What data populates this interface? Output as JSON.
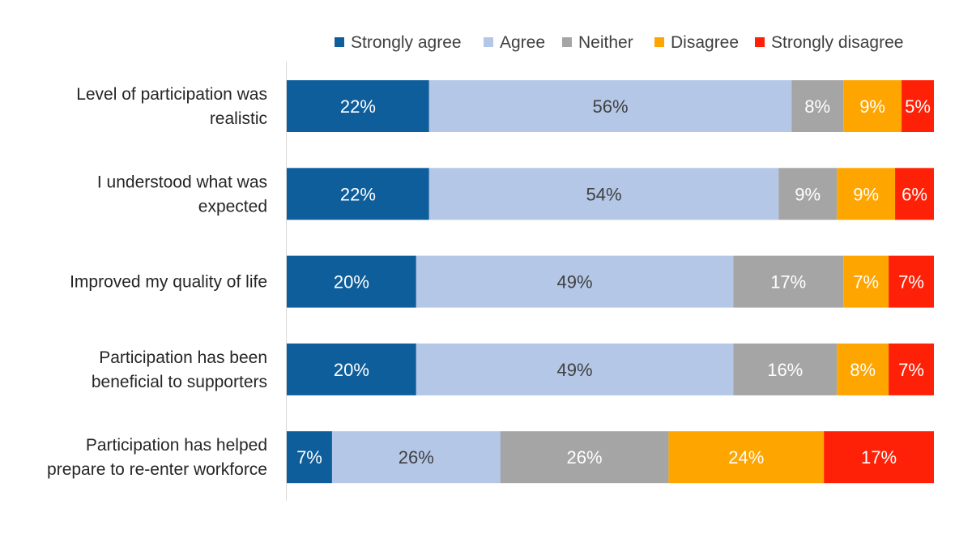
{
  "chart_data": {
    "type": "bar",
    "orientation": "horizontal",
    "stacked": true,
    "title": "",
    "xlabel": "",
    "ylabel": "",
    "xlim": [
      0,
      100
    ],
    "grid": false,
    "legend_position": "top",
    "categories": [
      [
        "Level of participation was",
        "realistic"
      ],
      [
        "I understood what was",
        "expected"
      ],
      [
        "Improved my quality of life"
      ],
      [
        "Participation has been",
        "beneficial to supporters"
      ],
      [
        "Participation has helped",
        "prepare to re-enter workforce"
      ]
    ],
    "series": [
      {
        "name": "Strongly agree",
        "color": "#0F5E9C",
        "label_color": "#FFFFFF",
        "values": [
          22,
          22,
          20,
          20,
          7
        ]
      },
      {
        "name": "Agree",
        "color": "#B4C7E7",
        "label_color": "#404040",
        "values": [
          56,
          54,
          49,
          49,
          26
        ]
      },
      {
        "name": "Neither",
        "color": "#A5A5A5",
        "label_color": "#FFFFFF",
        "values": [
          8,
          9,
          17,
          16,
          26
        ]
      },
      {
        "name": "Disagree",
        "color": "#FFA500",
        "label_color": "#FFFFFF",
        "values": [
          9,
          9,
          7,
          8,
          24
        ]
      },
      {
        "name": "Strongly disagree",
        "color": "#FF2107",
        "label_color": "#FFFFFF",
        "values": [
          5,
          6,
          7,
          7,
          17
        ]
      }
    ],
    "value_format": "%"
  }
}
